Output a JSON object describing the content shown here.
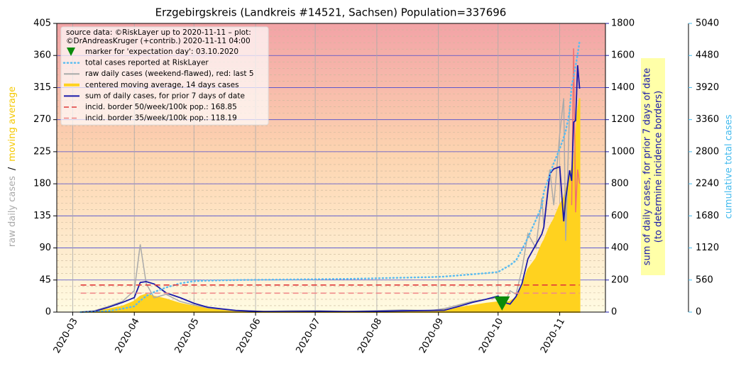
{
  "chart_data": {
    "type": "line",
    "title": "Erzgebirgskreis (Landkreis #14521, Sachsen) Population=337696",
    "x": [
      "2020-03-05",
      "2020-03-12",
      "2020-03-19",
      "2020-03-26",
      "2020-04-01",
      "2020-04-04",
      "2020-04-07",
      "2020-04-11",
      "2020-04-17",
      "2020-04-24",
      "2020-05-01",
      "2020-05-08",
      "2020-05-15",
      "2020-05-22",
      "2020-06-05",
      "2020-06-19",
      "2020-07-03",
      "2020-07-17",
      "2020-07-31",
      "2020-08-14",
      "2020-08-28",
      "2020-09-04",
      "2020-09-11",
      "2020-09-18",
      "2020-09-25",
      "2020-10-01",
      "2020-10-04",
      "2020-10-07",
      "2020-10-10",
      "2020-10-13",
      "2020-10-16",
      "2020-10-20",
      "2020-10-23",
      "2020-10-24",
      "2020-10-27",
      "2020-10-29",
      "2020-11-01",
      "2020-11-03",
      "2020-11-04",
      "2020-11-06",
      "2020-11-07",
      "2020-11-08",
      "2020-11-09",
      "2020-11-10",
      "2020-11-11"
    ],
    "xlim": [
      "2020-02-22",
      "2020-11-24"
    ],
    "xticks": [
      "2020-03",
      "2020-04",
      "2020-05",
      "2020-06",
      "2020-07",
      "2020-08",
      "2020-09",
      "2020-10",
      "2020-11"
    ],
    "ylim": [
      0,
      405
    ],
    "yticks": [
      0,
      45,
      90,
      135,
      180,
      225,
      270,
      315,
      360,
      405
    ],
    "y2lim": [
      0,
      1800
    ],
    "y2ticks": [
      0,
      200,
      400,
      600,
      800,
      1000,
      1200,
      1400,
      1600,
      1800
    ],
    "y3lim": [
      0,
      5040
    ],
    "y3ticks": [
      0,
      560,
      1120,
      1680,
      2240,
      2800,
      3360,
      3920,
      4480,
      5040
    ],
    "ylabel": [
      {
        "text": "raw daily cases",
        "color": "#aaaaaa"
      },
      {
        "text": "/",
        "color": "#000000"
      },
      {
        "text": "moving average",
        "color": "#f5c800"
      }
    ],
    "y2label": [
      "sum of daily cases, for prior 7 days of date",
      "(to determine incidence borders)"
    ],
    "y2color": "#1a1aaa",
    "y3label": "cumulative total cases",
    "y3color": "#44bbee",
    "legend_header": [
      "source data: ©RiskLayer up to 2020-11-11 – plot:",
      "©DrAndreasKruger (+contrib.) 2020-11-11 04:00"
    ],
    "marker": {
      "name": "marker for 'expectation day': 03.10.2020",
      "x": "2020-10-03",
      "value": 20,
      "color": "#0a8a0a"
    },
    "series": [
      {
        "name": "total cases reported at RiskLayer",
        "color": "#5bbcf0",
        "style": "dotted",
        "axis": "y3",
        "values": [
          0,
          5,
          20,
          60,
          100,
          200,
          280,
          350,
          430,
          500,
          540,
          550,
          555,
          560,
          565,
          570,
          575,
          580,
          590,
          600,
          610,
          620,
          640,
          660,
          680,
          700,
          760,
          820,
          900,
          1090,
          1300,
          1610,
          1850,
          2100,
          2400,
          2600,
          2850,
          3050,
          3160,
          3500,
          3960,
          4100,
          4300,
          4500,
          4730
        ]
      },
      {
        "name": "raw daily cases (weekend-flawed), red: last 5",
        "color": "#aaaaaa",
        "style": "solid",
        "highlight_color": "#f07070",
        "highlight_last": 5,
        "values": [
          0,
          2,
          8,
          15,
          30,
          95,
          40,
          20,
          25,
          15,
          10,
          6,
          4,
          2,
          1,
          2,
          2,
          1,
          2,
          3,
          2,
          5,
          10,
          15,
          18,
          20,
          10,
          30,
          25,
          60,
          110,
          90,
          160,
          120,
          200,
          150,
          250,
          300,
          100,
          290,
          150,
          370,
          140,
          200,
          180
        ]
      },
      {
        "name": "centered moving average, 14 days cases",
        "color": "#ffd21f",
        "style": "fill",
        "values": [
          0,
          1,
          4,
          8,
          15,
          22,
          25,
          22,
          18,
          12,
          8,
          5,
          3,
          2,
          1,
          1,
          1,
          1,
          1,
          2,
          2,
          3,
          6,
          9,
          12,
          14,
          12,
          15,
          20,
          35,
          60,
          75,
          95,
          100,
          120,
          130,
          150,
          160,
          170,
          190,
          200,
          210,
          240,
          280,
          300
        ]
      },
      {
        "name": "sum of daily cases, for prior 7 days of date",
        "color": "#1a1aaa",
        "style": "solid",
        "axis": "y2",
        "values": [
          0,
          5,
          30,
          60,
          90,
          185,
          190,
          175,
          120,
          90,
          55,
          30,
          20,
          10,
          3,
          3,
          5,
          3,
          5,
          8,
          10,
          12,
          35,
          60,
          80,
          100,
          60,
          50,
          97,
          177,
          332,
          420,
          487,
          530,
          862,
          893,
          906,
          566,
          708,
          884,
          818,
          1185,
          1194,
          1539,
          1393
        ]
      }
    ],
    "borders": [
      {
        "name": "incid. border 50/week/100k pop.: 168.85",
        "value": 168.85,
        "color": "#e03a3a",
        "axis": "y2"
      },
      {
        "name": "incid. border 35/week/100k pop.: 118.19",
        "value": 118.19,
        "color": "#f08a8a",
        "axis": "y2"
      }
    ]
  }
}
